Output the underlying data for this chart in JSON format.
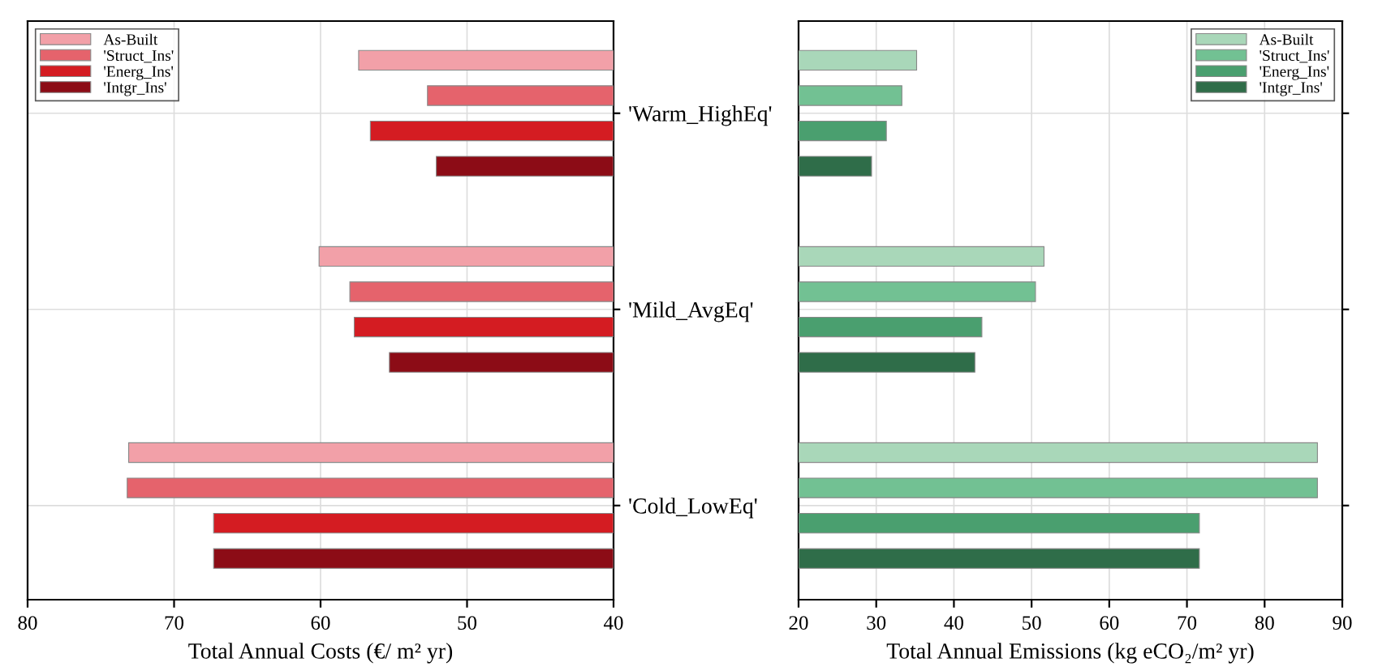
{
  "chart_data": [
    {
      "type": "bar",
      "orientation": "horizontal",
      "xlabel": "Total Annual Costs (€/ m² yr)",
      "categories": [
        "'Warm_HighEq'",
        "'Mild_AvgEq'",
        "'Cold_LowEq'"
      ],
      "series": [
        {
          "name": "As-Built",
          "color": "#f2a0a8",
          "values": [
            57.4,
            60.1,
            73.1
          ]
        },
        {
          "name": "'Struct_Ins'",
          "color": "#e5636c",
          "values": [
            52.7,
            58.0,
            73.2
          ]
        },
        {
          "name": "'Energ_Ins'",
          "color": "#d41c22",
          "values": [
            56.6,
            57.7,
            67.3
          ]
        },
        {
          "name": "'Intgr_Ins'",
          "color": "#8c0c16",
          "values": [
            52.1,
            55.3,
            67.3
          ]
        }
      ],
      "xlim": [
        80,
        40
      ],
      "xticks": [
        80,
        70,
        60,
        50,
        40
      ],
      "grid": true,
      "legend": "top left"
    },
    {
      "type": "bar",
      "orientation": "horizontal",
      "xlabel": "Total Annual Emissions (kg eCO₂/m² yr)",
      "categories": [
        null,
        null,
        null
      ],
      "series": [
        {
          "name": "As-Built",
          "color": "#a9d7b9",
          "values": [
            35.2,
            51.6,
            86.8
          ]
        },
        {
          "name": "'Struct_Ins'",
          "color": "#72c193",
          "values": [
            33.3,
            50.5,
            86.8
          ]
        },
        {
          "name": "'Energ_Ins'",
          "color": "#4a9f6f",
          "values": [
            31.3,
            43.6,
            71.6
          ]
        },
        {
          "name": "'Intgr_Ins'",
          "color": "#2f6d49",
          "values": [
            29.4,
            42.7,
            71.6
          ]
        }
      ],
      "xlim": [
        20,
        90
      ],
      "xticks": [
        20,
        30,
        40,
        50,
        60,
        70,
        80,
        90
      ],
      "grid": true,
      "legend": "top right"
    }
  ]
}
